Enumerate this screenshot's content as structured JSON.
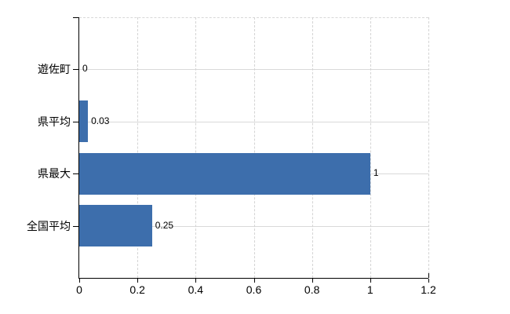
{
  "chart_data": {
    "type": "bar",
    "orientation": "horizontal",
    "title": "",
    "xlabel": "",
    "ylabel": "",
    "categories": [
      "遊佐町",
      "県平均",
      "県最大",
      "全国平均"
    ],
    "values": [
      0,
      0.03,
      1,
      0.25
    ],
    "value_labels": [
      "0",
      "0.03",
      "1",
      "0.25"
    ],
    "xlim": [
      0,
      1.2
    ],
    "x_ticks": [
      0,
      0.2,
      0.4,
      0.6,
      0.8,
      1,
      1.2
    ],
    "x_tick_labels": [
      "0",
      "0.2",
      "0.4",
      "0.6",
      "0.8",
      "1",
      "1.2"
    ],
    "legend_position": "none",
    "grid": "on",
    "bar_color": "#3d6eac",
    "hgrid_color": "#d9d9d9",
    "vgrid_color": "#d4d4d4",
    "axis_color": "#000000",
    "text_color": "#000000",
    "background_color": "#ffffff"
  }
}
